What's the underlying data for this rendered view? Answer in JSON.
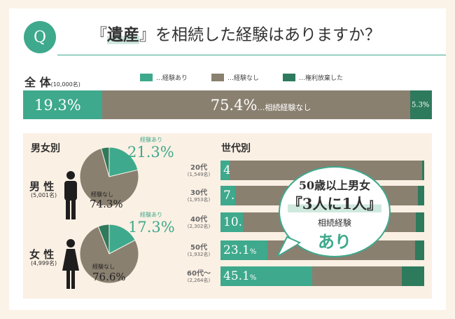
{
  "header": {
    "badge": "Q",
    "title_pre": "『",
    "title_highlight": "遺産",
    "title_post": "』を相続した経験はありますか？"
  },
  "colors": {
    "experienced": "#3ea98c",
    "not_experienced": "#8a8070",
    "renounced": "#2e7a5c"
  },
  "legend": {
    "experienced": "…経験あり",
    "not_experienced": "…経験なし",
    "renounced": "…権利放棄した"
  },
  "total": {
    "label": "全 体",
    "n": "(10,000名)",
    "experienced": "19.3%",
    "not_experienced": "75.4%",
    "not_experienced_suffix": "…相続経験なし",
    "renounced": "5.3%"
  },
  "gender": {
    "title": "男女別",
    "male": {
      "label": "男 性",
      "n": "(5,001名)",
      "exp_caption": "経験あり",
      "exp_pct": "21.3%",
      "notexp_caption": "経験なし",
      "notexp_pct": "74.3%"
    },
    "female": {
      "label": "女 性",
      "n": "(4,999名)",
      "exp_caption": "経験あり",
      "exp_pct": "17.3%",
      "notexp_caption": "経験なし",
      "notexp_pct": "76.6%"
    }
  },
  "generation": {
    "title": "世代別",
    "rows": [
      {
        "label": "20代",
        "n": "(1,549名)",
        "value_text": "4.6"
      },
      {
        "label": "30代",
        "n": "(1,953名)",
        "value_text": "7.2"
      },
      {
        "label": "40代",
        "n": "(2,302名)",
        "value_text": "10.9"
      },
      {
        "label": "50代",
        "n": "(1,932名)",
        "value_text": "23.1"
      },
      {
        "label": "60代～",
        "n": "(2,264名)",
        "value_text": "45.1"
      }
    ],
    "percent_sign": "%"
  },
  "callout": {
    "line1": "50歳以上男女",
    "line2": "『3人に1人』",
    "line3": "相続経験",
    "line4": "あり"
  },
  "chart_data": [
    {
      "type": "bar",
      "stacked": true,
      "title": "全 体",
      "categories": [
        "全 体"
      ],
      "series": [
        {
          "name": "経験あり",
          "values": [
            19.3
          ]
        },
        {
          "name": "経験なし",
          "values": [
            75.4
          ]
        },
        {
          "name": "権利放棄した",
          "values": [
            5.3
          ]
        }
      ]
    },
    {
      "type": "pie",
      "title": "男 性",
      "labels": [
        "経験あり",
        "経験なし",
        "権利放棄した"
      ],
      "values": [
        21.3,
        74.3,
        4.4
      ]
    },
    {
      "type": "pie",
      "title": "女 性",
      "labels": [
        "経験あり",
        "経験なし",
        "権利放棄した"
      ],
      "values": [
        17.3,
        76.6,
        6.1
      ]
    },
    {
      "type": "bar",
      "stacked": true,
      "orientation": "horizontal",
      "title": "世代別",
      "categories": [
        "20代",
        "30代",
        "40代",
        "50代",
        "60代～"
      ],
      "series": [
        {
          "name": "経験あり",
          "values": [
            4.6,
            7.2,
            10.9,
            23.1,
            45.1
          ]
        },
        {
          "name": "経験なし",
          "values": [
            94.4,
            89.8,
            85.1,
            72.4,
            43.9
          ]
        },
        {
          "name": "権利放棄した",
          "values": [
            1.0,
            3.0,
            4.0,
            4.5,
            11.0
          ]
        }
      ]
    }
  ]
}
